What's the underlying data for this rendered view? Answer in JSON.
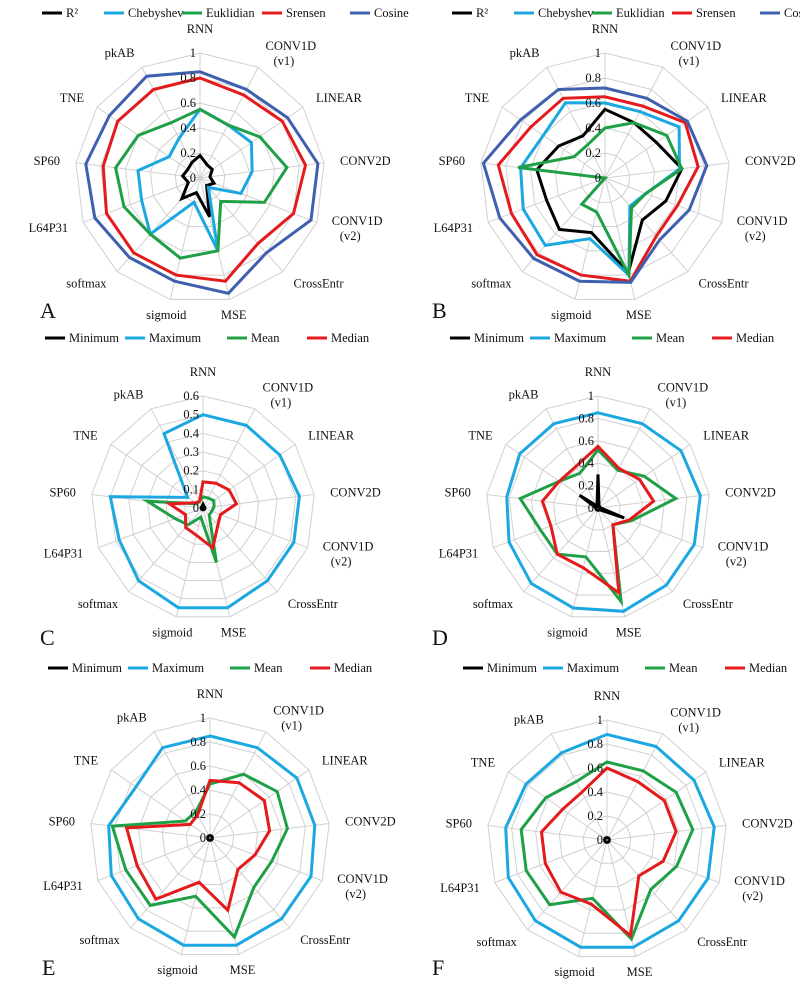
{
  "figure": {
    "colors": {
      "black": "#000000",
      "cyan": "#1BA8E0",
      "green": "#1FA046",
      "red": "#E41A1C",
      "blue": "#3F5FAF",
      "grid": "#D0D0D0"
    }
  },
  "chart_data": [
    {
      "type": "radar",
      "panel": "A",
      "axes": [
        "RNN",
        "CONV1D (v1)",
        "LINEAR",
        "CONV2D",
        "CONV1D (v2)",
        "CrossEntr",
        "MSE",
        "sigmoid",
        "softmax",
        "L64P31",
        "SP60",
        "TNE",
        "pkAB"
      ],
      "rlim": [
        0,
        1
      ],
      "ticks": [
        "0",
        "0.2",
        "0.4",
        "0.6",
        "0.8",
        "1"
      ],
      "legend_position": "top",
      "series": [
        {
          "name": "R²",
          "color": "#000000",
          "values": [
            0.18,
            0.12,
            0.12,
            0.08,
            0.12,
            0.08,
            0.32,
            0.12,
            0.22,
            0.1,
            0.14,
            0.12,
            0.14
          ]
        },
        {
          "name": "Chebyshev",
          "color": "#1BA8E0",
          "values": [
            0.55,
            0.48,
            0.5,
            0.42,
            0.35,
            0.1,
            0.6,
            0.2,
            0.6,
            0.5,
            0.5,
            0.3,
            0.36
          ]
        },
        {
          "name": "Euklidian",
          "color": "#1FA046",
          "values": [
            0.55,
            0.48,
            0.58,
            0.7,
            0.55,
            0.25,
            0.6,
            0.66,
            0.6,
            0.65,
            0.68,
            0.6,
            0.5
          ]
        },
        {
          "name": "Srensen",
          "color": "#E41A1C",
          "values": [
            0.8,
            0.75,
            0.8,
            0.85,
            0.8,
            0.7,
            0.85,
            0.8,
            0.8,
            0.8,
            0.78,
            0.8,
            0.8
          ]
        },
        {
          "name": "Cosine",
          "color": "#3F5FAF",
          "values": [
            0.85,
            0.8,
            0.85,
            0.95,
            0.95,
            0.8,
            0.95,
            0.85,
            0.85,
            0.9,
            0.92,
            0.88,
            0.92
          ]
        }
      ]
    },
    {
      "type": "radar",
      "panel": "B",
      "axes": [
        "RNN",
        "CONV1D (v1)",
        "LINEAR",
        "CONV2D",
        "CONV1D (v2)",
        "CrossEntr",
        "MSE",
        "sigmoid",
        "softmax",
        "L64P31",
        "SP60",
        "TNE",
        "pkAB"
      ],
      "rlim": [
        0,
        1
      ],
      "ticks": [
        "0",
        "0.2",
        "0.4",
        "0.6",
        "0.8",
        "1"
      ],
      "legend_position": "top",
      "series": [
        {
          "name": "R²",
          "color": "#000000",
          "values": [
            0.55,
            0.5,
            0.5,
            0.62,
            0.52,
            0.45,
            0.78,
            0.45,
            0.55,
            0.5,
            0.55,
            0.45,
            0.38
          ]
        },
        {
          "name": "Chebyshev",
          "color": "#1BA8E0",
          "values": [
            0.6,
            0.6,
            0.72,
            0.6,
            0.35,
            0.3,
            0.8,
            0.5,
            0.72,
            0.7,
            0.68,
            0.6,
            0.68
          ]
        },
        {
          "name": "Euklidian",
          "color": "#1FA046",
          "values": [
            0.4,
            0.5,
            0.6,
            0.62,
            0.35,
            0.32,
            0.8,
            0.28,
            0.28,
            0.0,
            0.7,
            0.3,
            0.3
          ]
        },
        {
          "name": "Srensen",
          "color": "#E41A1C",
          "values": [
            0.65,
            0.65,
            0.78,
            0.75,
            0.62,
            0.62,
            0.85,
            0.8,
            0.82,
            0.8,
            0.86,
            0.72,
            0.72
          ]
        },
        {
          "name": "Cosine",
          "color": "#3F5FAF",
          "values": [
            0.72,
            0.72,
            0.8,
            0.82,
            0.72,
            0.66,
            0.86,
            0.85,
            0.86,
            0.9,
            0.98,
            0.82,
            0.8
          ]
        }
      ]
    },
    {
      "type": "radar",
      "panel": "C",
      "axes": [
        "RNN",
        "CONV1D (v1)",
        "LINEAR",
        "CONV2D",
        "CONV1D (v2)",
        "CrossEntr",
        "MSE",
        "sigmoid",
        "softmax",
        "L64P31",
        "SP60",
        "TNE",
        "pkAB"
      ],
      "rlim": [
        0,
        0.6
      ],
      "ticks": [
        "0",
        "0.1",
        "0.2",
        "0.3",
        "0.4",
        "0.5",
        "0.6"
      ],
      "legend_position": "top",
      "series": [
        {
          "name": "Minimum",
          "color": "#000000",
          "values": [
            0.02,
            0.01,
            0.01,
            0.01,
            0.01,
            0.01,
            0.01,
            0.01,
            0.01,
            0.01,
            0.01,
            0.01,
            0.01
          ]
        },
        {
          "name": "Maximum",
          "color": "#1BA8E0",
          "values": [
            0.5,
            0.5,
            0.5,
            0.52,
            0.52,
            0.52,
            0.55,
            0.55,
            0.52,
            0.48,
            0.5,
            0.1,
            0.45
          ]
        },
        {
          "name": "Mean",
          "color": "#1FA046",
          "values": [
            0.06,
            0.06,
            0.07,
            0.06,
            0.05,
            0.05,
            0.3,
            0.05,
            0.12,
            0.16,
            0.3,
            0.04,
            0.04
          ]
        },
        {
          "name": "Median",
          "color": "#E41A1C",
          "values": [
            0.14,
            0.15,
            0.17,
            0.18,
            0.1,
            0.12,
            0.22,
            0.15,
            0.14,
            0.1,
            0.18,
            0.05,
            0.04
          ]
        }
      ]
    },
    {
      "type": "radar",
      "panel": "D",
      "axes": [
        "RNN",
        "CONV1D (v1)",
        "LINEAR",
        "CONV2D",
        "CONV1D (v2)",
        "CrossEntr",
        "MSE",
        "sigmoid",
        "softmax",
        "L64P31",
        "SP60",
        "TNE",
        "pkAB"
      ],
      "rlim": [
        0,
        1
      ],
      "ticks": [
        "0",
        "0.2",
        "0.4",
        "0.6",
        "0.8",
        "1"
      ],
      "legend_position": "top",
      "series": [
        {
          "name": "Minimum",
          "color": "#000000",
          "values": [
            0.3,
            0.02,
            0.02,
            0.02,
            0.25,
            0.02,
            0.02,
            0.02,
            0.02,
            0.02,
            0.02,
            0.2,
            0.02
          ]
        },
        {
          "name": "Maximum",
          "color": "#1BA8E0",
          "values": [
            0.85,
            0.85,
            0.9,
            0.92,
            0.92,
            0.92,
            0.95,
            0.92,
            0.9,
            0.85,
            0.82,
            0.85,
            0.85
          ]
        },
        {
          "name": "Mean",
          "color": "#1FA046",
          "values": [
            0.52,
            0.38,
            0.5,
            0.7,
            0.32,
            0.2,
            0.86,
            0.45,
            0.55,
            0.55,
            0.7,
            0.42,
            0.35
          ]
        },
        {
          "name": "Median",
          "color": "#E41A1C",
          "values": [
            0.55,
            0.4,
            0.45,
            0.5,
            0.3,
            0.2,
            0.78,
            0.55,
            0.55,
            0.45,
            0.5,
            0.42,
            0.42
          ]
        }
      ]
    },
    {
      "type": "radar",
      "panel": "E",
      "axes": [
        "RNN",
        "CONV1D (v1)",
        "LINEAR",
        "CONV2D",
        "CONV1D (v2)",
        "CrossEntr",
        "MSE",
        "sigmoid",
        "softmax",
        "L64P31",
        "SP60",
        "TNE",
        "pkAB"
      ],
      "rlim": [
        0,
        1
      ],
      "ticks": [
        "0",
        "0.2",
        "0.4",
        "0.6",
        "0.8",
        "1"
      ],
      "legend_position": "top",
      "series": [
        {
          "name": "Minimum",
          "color": "#000000",
          "values": [
            0.02,
            0.02,
            0.02,
            0.02,
            0.02,
            0.02,
            0.02,
            0.02,
            0.02,
            0.02,
            0.02,
            0.02,
            0.02
          ]
        },
        {
          "name": "Maximum",
          "color": "#1BA8E0",
          "values": [
            0.85,
            0.85,
            0.88,
            0.88,
            0.9,
            0.9,
            0.92,
            0.92,
            0.9,
            0.88,
            0.85,
            0.75,
            0.85
          ]
        },
        {
          "name": "Mean",
          "color": "#1FA046",
          "values": [
            0.45,
            0.6,
            0.68,
            0.65,
            0.55,
            0.55,
            0.85,
            0.5,
            0.75,
            0.75,
            0.82,
            0.25,
            0.25
          ]
        },
        {
          "name": "Median",
          "color": "#E41A1C",
          "values": [
            0.48,
            0.52,
            0.55,
            0.5,
            0.4,
            0.35,
            0.62,
            0.38,
            0.68,
            0.65,
            0.7,
            0.2,
            0.22
          ]
        }
      ]
    },
    {
      "type": "radar",
      "panel": "F",
      "axes": [
        "RNN",
        "CONV1D (v1)",
        "LINEAR",
        "CONV2D",
        "CONV1D (v2)",
        "CrossEntr",
        "MSE",
        "sigmoid",
        "softmax",
        "L64P31",
        "SP60",
        "TNE",
        "pkAB"
      ],
      "rlim": [
        0,
        1
      ],
      "ticks": [
        "0",
        "0.2",
        "0.4",
        "0.6",
        "0.8",
        "1"
      ],
      "legend_position": "top",
      "series": [
        {
          "name": "Minimum",
          "color": "#000000",
          "values": [
            0.02,
            0.02,
            0.02,
            0.02,
            0.02,
            0.02,
            0.02,
            0.02,
            0.02,
            0.02,
            0.02,
            0.02,
            0.02
          ]
        },
        {
          "name": "Maximum",
          "color": "#1BA8E0",
          "values": [
            0.88,
            0.88,
            0.88,
            0.9,
            0.9,
            0.9,
            0.92,
            0.92,
            0.9,
            0.88,
            0.85,
            0.82,
            0.82
          ]
        },
        {
          "name": "Mean",
          "color": "#1FA046",
          "values": [
            0.65,
            0.65,
            0.7,
            0.72,
            0.62,
            0.55,
            0.85,
            0.5,
            0.72,
            0.72,
            0.72,
            0.62,
            0.55
          ]
        },
        {
          "name": "Median",
          "color": "#E41A1C",
          "values": [
            0.6,
            0.55,
            0.58,
            0.58,
            0.5,
            0.4,
            0.82,
            0.55,
            0.58,
            0.55,
            0.55,
            0.45,
            0.45
          ]
        }
      ]
    }
  ]
}
